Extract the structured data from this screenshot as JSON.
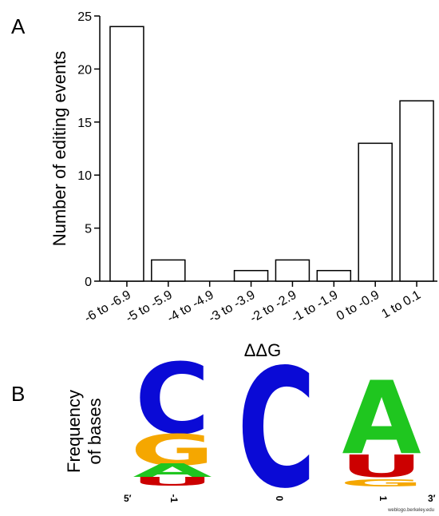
{
  "panels": {
    "a_label": "A",
    "b_label": "B"
  },
  "chart_data": {
    "type": "bar",
    "categories": [
      "-6 to -6.9",
      "-5 to -5.9",
      "-4 to -4.9",
      "-3 to -3.9",
      "-2 to -2.9",
      "-1 to -1.9",
      "0 to -0.9",
      "1 to 0.1"
    ],
    "values": [
      24,
      2,
      0,
      1,
      2,
      1,
      13,
      17
    ],
    "title": "",
    "xlabel": "ΔΔG",
    "ylabel": "Number of editing events",
    "ylim": [
      0,
      25
    ],
    "yticks": [
      0,
      5,
      10,
      15,
      20,
      25
    ],
    "grid": false,
    "bar_fill": "#ffffff",
    "bar_stroke": "#000000"
  },
  "logo": {
    "ylabel_line1": "Frequency",
    "ylabel_line2": "of bases",
    "positions": [
      "5′",
      "-1",
      "0",
      "1",
      "3′"
    ],
    "credit": "weblogo.berkeley.edu",
    "colors": {
      "A": "#1fc61f",
      "C": "#0a0ad6",
      "G": "#f5a700",
      "U": "#cc0000"
    },
    "columns": [
      {
        "position": "-1",
        "stack": [
          "C",
          "G",
          "A",
          "U"
        ]
      },
      {
        "position": "0",
        "stack": [
          "C"
        ]
      },
      {
        "position": "1",
        "stack": [
          "A",
          "U",
          "G"
        ]
      }
    ]
  }
}
